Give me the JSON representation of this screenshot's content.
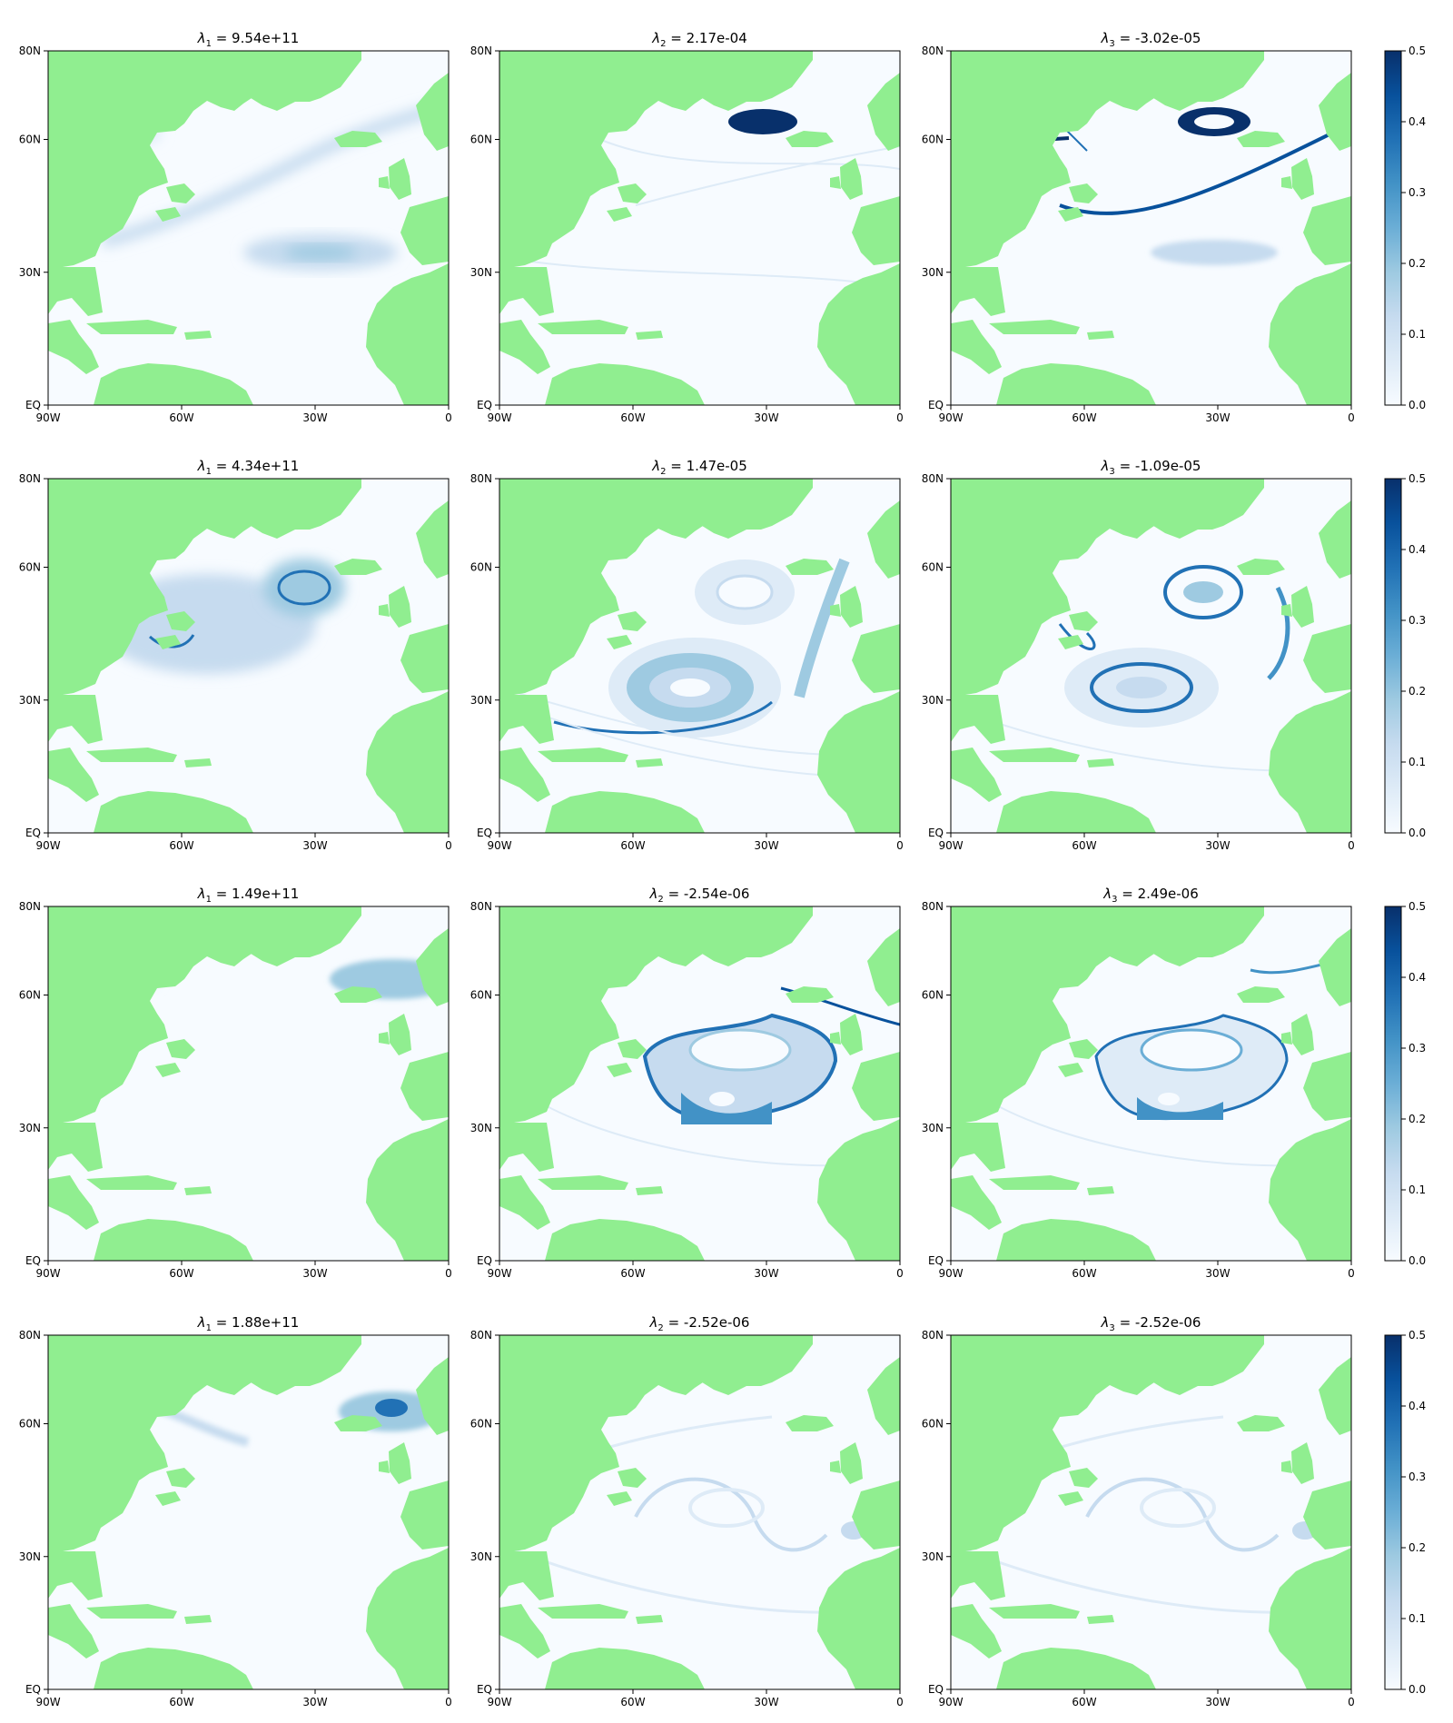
{
  "figure": {
    "colors": {
      "land": "#90ee90",
      "ocean": "#f7fbff",
      "frame": "#000000"
    },
    "colormap": {
      "name": "Blues",
      "stops": [
        "#f7fbff",
        "#deebf7",
        "#c6dbef",
        "#9ecae1",
        "#6baed6",
        "#4292c6",
        "#2171b5",
        "#08519c",
        "#08306b"
      ]
    },
    "xticks": [
      "90W",
      "60W",
      "30W",
      "0"
    ],
    "yticks": [
      "EQ",
      "30N",
      "60N",
      "80N"
    ]
  },
  "chart_data": [
    {
      "type": "heatmap",
      "row": 1,
      "col": 1,
      "title": "λ1 = 9.54e+11",
      "title_sym": "λ",
      "title_sub": "1",
      "title_rest": " = 9.54e+11",
      "xlim": [
        -90,
        0
      ],
      "ylim": [
        0,
        80
      ],
      "vlim": [
        0,
        0.5
      ]
    },
    {
      "type": "heatmap",
      "row": 1,
      "col": 2,
      "title": "λ2 = 2.17e-04",
      "title_sym": "λ",
      "title_sub": "2",
      "title_rest": " = 2.17e-04",
      "xlim": [
        -90,
        0
      ],
      "ylim": [
        0,
        80
      ],
      "vlim": [
        0,
        0.5
      ]
    },
    {
      "type": "heatmap",
      "row": 1,
      "col": 3,
      "title": "λ3 = -3.02e-05",
      "title_sym": "λ",
      "title_sub": "3",
      "title_rest": " = -3.02e-05",
      "xlim": [
        -90,
        0
      ],
      "ylim": [
        0,
        80
      ],
      "vlim": [
        0,
        0.5
      ]
    },
    {
      "type": "heatmap",
      "row": 2,
      "col": 1,
      "title": "λ1 = 4.34e+11",
      "title_sym": "λ",
      "title_sub": "1",
      "title_rest": " = 4.34e+11",
      "xlim": [
        -90,
        0
      ],
      "ylim": [
        0,
        80
      ],
      "vlim": [
        0,
        0.5
      ]
    },
    {
      "type": "heatmap",
      "row": 2,
      "col": 2,
      "title": "λ2 = 1.47e-05",
      "title_sym": "λ",
      "title_sub": "2",
      "title_rest": " = 1.47e-05",
      "xlim": [
        -90,
        0
      ],
      "ylim": [
        0,
        80
      ],
      "vlim": [
        0,
        0.5
      ]
    },
    {
      "type": "heatmap",
      "row": 2,
      "col": 3,
      "title": "λ3 = -1.09e-05",
      "title_sym": "λ",
      "title_sub": "3",
      "title_rest": " = -1.09e-05",
      "xlim": [
        -90,
        0
      ],
      "ylim": [
        0,
        80
      ],
      "vlim": [
        0,
        0.5
      ]
    },
    {
      "type": "heatmap",
      "row": 3,
      "col": 1,
      "title": "λ1 = 1.49e+11",
      "title_sym": "λ",
      "title_sub": "1",
      "title_rest": " = 1.49e+11",
      "xlim": [
        -90,
        0
      ],
      "ylim": [
        0,
        80
      ],
      "vlim": [
        0,
        0.5
      ]
    },
    {
      "type": "heatmap",
      "row": 3,
      "col": 2,
      "title": "λ2 = -2.54e-06",
      "title_sym": "λ",
      "title_sub": "2",
      "title_rest": " = -2.54e-06",
      "xlim": [
        -90,
        0
      ],
      "ylim": [
        0,
        80
      ],
      "vlim": [
        0,
        0.5
      ]
    },
    {
      "type": "heatmap",
      "row": 3,
      "col": 3,
      "title": "λ3 = 2.49e-06",
      "title_sym": "λ",
      "title_sub": "3",
      "title_rest": " = 2.49e-06",
      "xlim": [
        -90,
        0
      ],
      "ylim": [
        0,
        80
      ],
      "vlim": [
        0,
        0.5
      ]
    },
    {
      "type": "heatmap",
      "row": 4,
      "col": 1,
      "title": "λ1 = 1.88e+11",
      "title_sym": "λ",
      "title_sub": "1",
      "title_rest": " = 1.88e+11",
      "xlim": [
        -90,
        0
      ],
      "ylim": [
        0,
        80
      ],
      "vlim": [
        0,
        0.5
      ]
    },
    {
      "type": "heatmap",
      "row": 4,
      "col": 2,
      "title": "λ2 = -2.52e-06",
      "title_sym": "λ",
      "title_sub": "2",
      "title_rest": " = -2.52e-06",
      "xlim": [
        -90,
        0
      ],
      "ylim": [
        0,
        80
      ],
      "vlim": [
        0,
        0.5
      ]
    },
    {
      "type": "heatmap",
      "row": 4,
      "col": 3,
      "title": "λ3 = -2.52e-06",
      "title_sym": "λ",
      "title_sub": "3",
      "title_rest": " = -2.52e-06",
      "xlim": [
        -90,
        0
      ],
      "ylim": [
        0,
        80
      ],
      "vlim": [
        0,
        0.5
      ]
    }
  ],
  "colorbars": [
    {
      "row": 1,
      "ticks": [
        "0.0",
        "0.1",
        "0.2",
        "0.3",
        "0.4",
        "0.5"
      ]
    },
    {
      "row": 2,
      "ticks": [
        "0.0",
        "0.1",
        "0.2",
        "0.3",
        "0.4",
        "0.5"
      ]
    },
    {
      "row": 3,
      "ticks": [
        "0.0",
        "0.1",
        "0.2",
        "0.3",
        "0.4",
        "0.5"
      ]
    },
    {
      "row": 4,
      "ticks": [
        "0.0",
        "0.1",
        "0.2",
        "0.3",
        "0.4",
        "0.5"
      ]
    }
  ]
}
